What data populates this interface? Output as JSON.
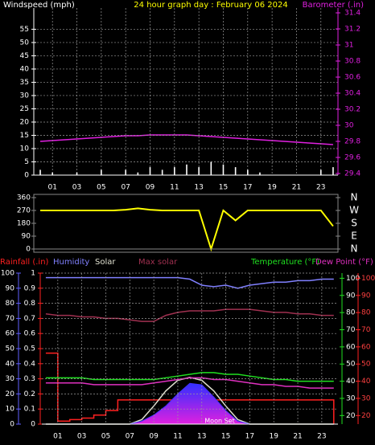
{
  "chart_data": [
    {
      "type": "line",
      "title": "24 hour graph day : February 06 2024",
      "ylabel": "Windspeed (mph)",
      "y2label": "Barometer (.in)",
      "x": [
        0,
        1,
        2,
        3,
        4,
        5,
        6,
        7,
        8,
        9,
        10,
        11,
        12,
        13,
        14,
        15,
        16,
        17,
        18,
        19,
        20,
        21,
        22,
        23,
        24
      ],
      "xlim": [
        -0.53,
        24.4
      ],
      "xticks": [
        {
          "value": 1,
          "label": "01"
        },
        {
          "value": 3,
          "label": "03"
        },
        {
          "value": 5,
          "label": "05"
        },
        {
          "value": 7,
          "label": "07"
        },
        {
          "value": 9,
          "label": "09"
        },
        {
          "value": 11,
          "label": "11"
        },
        {
          "value": 13,
          "label": "13"
        },
        {
          "value": 15,
          "label": "15"
        },
        {
          "value": 17,
          "label": "17"
        },
        {
          "value": 19,
          "label": "19"
        },
        {
          "value": 21,
          "label": "21"
        },
        {
          "value": 23,
          "label": "23"
        }
      ],
      "ylim": [
        0,
        63
      ],
      "yticks": [
        0,
        5,
        10,
        15,
        20,
        25,
        30,
        35,
        40,
        45,
        50,
        55
      ],
      "y2lim": [
        29.38,
        31.46
      ],
      "y2ticks": [
        29.4,
        29.6,
        29.8,
        30,
        30.2,
        30.4,
        30.6,
        30.8,
        31,
        31.2,
        31.4
      ],
      "grid": true,
      "series": [
        {
          "type": "bar",
          "color": "#ffffff",
          "values": [
            2,
            1,
            0,
            1,
            0,
            2,
            0,
            2,
            1,
            3,
            2,
            3,
            4,
            3,
            5,
            4,
            3,
            2,
            1,
            0,
            0,
            0,
            0,
            2,
            3
          ]
        },
        {
          "type": "line",
          "axis": "y2",
          "color": "#e020e0",
          "values": [
            29.8,
            29.81,
            29.82,
            29.83,
            29.84,
            29.85,
            29.86,
            29.87,
            29.87,
            29.88,
            29.88,
            29.88,
            29.88,
            29.87,
            29.86,
            29.85,
            29.84,
            29.83,
            29.82,
            29.81,
            29.8,
            29.79,
            29.78,
            29.77,
            29.76
          ]
        }
      ]
    },
    {
      "type": "line",
      "x": [
        0,
        1,
        2,
        3,
        4,
        5,
        6,
        7,
        8,
        9,
        10,
        11,
        12,
        13,
        14,
        15,
        16,
        17,
        18,
        19,
        20,
        21,
        22,
        23,
        24
      ],
      "xlim": [
        -0.53,
        24.4
      ],
      "ylim": [
        0,
        360
      ],
      "yticks": [
        0,
        90,
        180,
        270,
        360
      ],
      "y2lim": [
        0,
        360
      ],
      "y2ticks": [
        {
          "value": 360,
          "label": "N"
        },
        {
          "value": 270,
          "label": "W"
        },
        {
          "value": 180,
          "label": "S"
        },
        {
          "value": 90,
          "label": "E"
        },
        {
          "value": 0,
          "label": "N"
        }
      ],
      "series": [
        {
          "type": "line",
          "color": "#ffff00",
          "values": [
            270,
            270,
            270,
            270,
            270,
            270,
            270,
            275,
            285,
            275,
            270,
            270,
            270,
            270,
            0,
            270,
            200,
            270,
            270,
            270,
            270,
            270,
            270,
            270,
            160
          ]
        }
      ]
    },
    {
      "type": "line",
      "annotation": "Moon Set",
      "x": [
        0,
        1,
        2,
        3,
        4,
        5,
        6,
        7,
        8,
        9,
        10,
        11,
        12,
        13,
        14,
        15,
        16,
        17,
        18,
        19,
        20,
        21,
        22,
        23,
        24
      ],
      "xlim": [
        -0.33,
        24.35
      ],
      "xticks": [
        {
          "value": 1,
          "label": "01"
        },
        {
          "value": 3,
          "label": "03"
        },
        {
          "value": 5,
          "label": "05"
        },
        {
          "value": 7,
          "label": "07"
        },
        {
          "value": 9,
          "label": "09"
        },
        {
          "value": 11,
          "label": "11"
        },
        {
          "value": 13,
          "label": "13"
        },
        {
          "value": 15,
          "label": "15"
        },
        {
          "value": 17,
          "label": "17"
        },
        {
          "value": 19,
          "label": "19"
        },
        {
          "value": 21,
          "label": "21"
        },
        {
          "value": 23,
          "label": "23"
        }
      ],
      "ylim": [
        0,
        100
      ],
      "yticks": [
        0,
        10,
        20,
        30,
        40,
        50,
        60,
        70,
        80,
        90,
        100
      ],
      "y3lim": [
        0,
        1.0
      ],
      "y3ticks": [
        0,
        0.1,
        0.2,
        0.3,
        0.4,
        0.5,
        0.6,
        0.7,
        0.8,
        0.9,
        1
      ],
      "y2lim": [
        15,
        103
      ],
      "y2ticks": [
        20,
        30,
        40,
        50,
        60,
        70,
        80,
        90,
        100
      ],
      "grid": true,
      "series": [
        {
          "name": "Rainfall (.in)",
          "axis": "y3",
          "color": "#ff2020",
          "values": [
            0.47,
            0.02,
            0.03,
            0.04,
            0.06,
            0.09,
            0.16,
            0.16,
            0.16,
            0.16,
            0.16,
            0.16,
            0.16,
            0.16,
            0.16,
            0.16,
            0.16,
            0.16,
            0.16,
            0.16,
            0.16,
            0.16,
            0.16,
            0.16,
            0
          ]
        },
        {
          "name": "Humidity",
          "color": "#8080ff",
          "values": [
            97,
            97,
            97,
            97,
            97,
            97,
            97,
            97,
            97,
            97,
            97,
            97,
            96,
            92,
            91,
            92,
            90,
            92,
            93,
            94,
            94,
            95,
            95,
            96,
            96
          ]
        },
        {
          "name": "Solar",
          "color": "#e0e0d0",
          "values": [
            0,
            0,
            0,
            0,
            0,
            0,
            0,
            0,
            3,
            12,
            22,
            29,
            31,
            29,
            22,
            12,
            3,
            0,
            0,
            0,
            0,
            0,
            0,
            0,
            0
          ]
        },
        {
          "name": "Max solar",
          "color": "#a03050",
          "values": [
            73,
            72,
            72,
            71,
            71,
            70,
            70,
            69,
            68,
            68,
            72,
            74,
            75,
            75,
            75,
            76,
            76,
            76,
            75,
            74,
            74,
            73,
            73,
            72,
            72
          ]
        },
        {
          "name": "Temperature (°F)",
          "axis": "y2",
          "color": "#20e020",
          "values": [
            42,
            42,
            42,
            42,
            41,
            41,
            41,
            41,
            41,
            41,
            42,
            43,
            44,
            45,
            45,
            44,
            44,
            43,
            42,
            41,
            41,
            40,
            40,
            40,
            40
          ]
        },
        {
          "name": "Dew Point (°F)",
          "axis": "y2",
          "color": "#e030c0",
          "values": [
            39,
            39,
            39,
            39,
            38,
            38,
            38,
            38,
            38,
            39,
            40,
            41,
            42,
            42,
            41,
            41,
            40,
            39,
            38,
            38,
            37,
            37,
            36,
            36,
            36
          ]
        },
        {
          "type": "area",
          "color": "#4030ff",
          "values": [
            0,
            0,
            0,
            0,
            0,
            0,
            0,
            0,
            2,
            6,
            12,
            20,
            27,
            26,
            18,
            9,
            2,
            0,
            0,
            0,
            0,
            0,
            0,
            0,
            0
          ]
        }
      ]
    }
  ]
}
